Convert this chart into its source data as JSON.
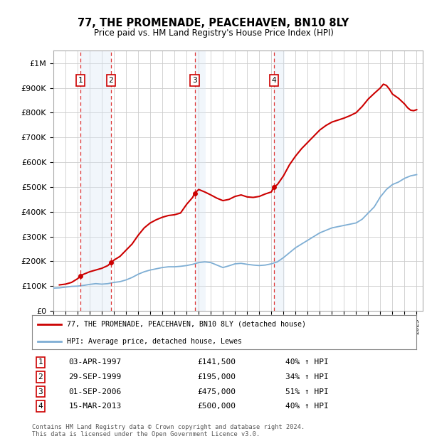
{
  "title": "77, THE PROMENADE, PEACEHAVEN, BN10 8LY",
  "subtitle": "Price paid vs. HM Land Registry's House Price Index (HPI)",
  "legend_line1": "77, THE PROMENADE, PEACEHAVEN, BN10 8LY (detached house)",
  "legend_line2": "HPI: Average price, detached house, Lewes",
  "footer": "Contains HM Land Registry data © Crown copyright and database right 2024.\nThis data is licensed under the Open Government Licence v3.0.",
  "sales": [
    {
      "num": 1,
      "date": "03-APR-1997",
      "x": 1997.25,
      "price": 141500,
      "pct": "40%",
      "dir": "↑"
    },
    {
      "num": 2,
      "date": "29-SEP-1999",
      "x": 1999.75,
      "price": 195000,
      "pct": "34%",
      "dir": "↑"
    },
    {
      "num": 3,
      "date": "01-SEP-2006",
      "x": 2006.67,
      "price": 475000,
      "pct": "51%",
      "dir": "↑"
    },
    {
      "num": 4,
      "date": "15-MAR-2013",
      "x": 2013.21,
      "price": 500000,
      "pct": "40%",
      "dir": "↑"
    }
  ],
  "hpi_color": "#7eaed4",
  "price_color": "#cc0000",
  "marker_color": "#cc0000",
  "shade_color": "#d8e8f5",
  "ylim": [
    0,
    1050000
  ],
  "yticks": [
    0,
    100000,
    200000,
    300000,
    400000,
    500000,
    600000,
    700000,
    800000,
    900000,
    1000000
  ],
  "ytick_labels": [
    "£0",
    "£100K",
    "£200K",
    "£300K",
    "£400K",
    "£500K",
    "£600K",
    "£700K",
    "£800K",
    "£900K",
    "£1M"
  ],
  "xmin": 1995.0,
  "xmax": 2025.5,
  "hpi_data": [
    [
      1995.0,
      92000
    ],
    [
      1995.5,
      93000
    ],
    [
      1996.0,
      96000
    ],
    [
      1996.5,
      99000
    ],
    [
      1997.0,
      100000
    ],
    [
      1997.5,
      103000
    ],
    [
      1998.0,
      107000
    ],
    [
      1998.5,
      110000
    ],
    [
      1999.0,
      108000
    ],
    [
      1999.5,
      110000
    ],
    [
      2000.0,
      115000
    ],
    [
      2000.5,
      118000
    ],
    [
      2001.0,
      125000
    ],
    [
      2001.5,
      135000
    ],
    [
      2002.0,
      148000
    ],
    [
      2002.5,
      158000
    ],
    [
      2003.0,
      165000
    ],
    [
      2003.5,
      170000
    ],
    [
      2004.0,
      175000
    ],
    [
      2004.5,
      178000
    ],
    [
      2005.0,
      178000
    ],
    [
      2005.5,
      180000
    ],
    [
      2006.0,
      183000
    ],
    [
      2006.5,
      188000
    ],
    [
      2007.0,
      195000
    ],
    [
      2007.5,
      198000
    ],
    [
      2008.0,
      195000
    ],
    [
      2008.5,
      185000
    ],
    [
      2009.0,
      175000
    ],
    [
      2009.5,
      182000
    ],
    [
      2010.0,
      190000
    ],
    [
      2010.5,
      192000
    ],
    [
      2011.0,
      188000
    ],
    [
      2011.5,
      185000
    ],
    [
      2012.0,
      183000
    ],
    [
      2012.5,
      185000
    ],
    [
      2013.0,
      190000
    ],
    [
      2013.5,
      198000
    ],
    [
      2014.0,
      215000
    ],
    [
      2014.5,
      235000
    ],
    [
      2015.0,
      255000
    ],
    [
      2015.5,
      270000
    ],
    [
      2016.0,
      285000
    ],
    [
      2016.5,
      300000
    ],
    [
      2017.0,
      315000
    ],
    [
      2017.5,
      325000
    ],
    [
      2018.0,
      335000
    ],
    [
      2018.5,
      340000
    ],
    [
      2019.0,
      345000
    ],
    [
      2019.5,
      350000
    ],
    [
      2020.0,
      355000
    ],
    [
      2020.5,
      370000
    ],
    [
      2021.0,
      395000
    ],
    [
      2021.5,
      420000
    ],
    [
      2022.0,
      460000
    ],
    [
      2022.5,
      490000
    ],
    [
      2023.0,
      510000
    ],
    [
      2023.5,
      520000
    ],
    [
      2024.0,
      535000
    ],
    [
      2024.5,
      545000
    ],
    [
      2025.0,
      550000
    ]
  ],
  "price_data": [
    [
      1995.5,
      105000
    ],
    [
      1996.0,
      108000
    ],
    [
      1996.5,
      115000
    ],
    [
      1997.0,
      130000
    ],
    [
      1997.25,
      141500
    ],
    [
      1997.5,
      148000
    ],
    [
      1998.0,
      158000
    ],
    [
      1998.5,
      165000
    ],
    [
      1999.0,
      172000
    ],
    [
      1999.5,
      183000
    ],
    [
      1999.75,
      195000
    ],
    [
      2000.0,
      205000
    ],
    [
      2000.5,
      220000
    ],
    [
      2001.0,
      245000
    ],
    [
      2001.5,
      270000
    ],
    [
      2002.0,
      305000
    ],
    [
      2002.5,
      335000
    ],
    [
      2003.0,
      355000
    ],
    [
      2003.5,
      368000
    ],
    [
      2004.0,
      378000
    ],
    [
      2004.5,
      385000
    ],
    [
      2005.0,
      388000
    ],
    [
      2005.5,
      395000
    ],
    [
      2006.0,
      430000
    ],
    [
      2006.5,
      458000
    ],
    [
      2006.67,
      475000
    ],
    [
      2007.0,
      490000
    ],
    [
      2007.5,
      480000
    ],
    [
      2008.0,
      468000
    ],
    [
      2008.5,
      455000
    ],
    [
      2009.0,
      445000
    ],
    [
      2009.5,
      450000
    ],
    [
      2010.0,
      462000
    ],
    [
      2010.5,
      468000
    ],
    [
      2011.0,
      460000
    ],
    [
      2011.5,
      458000
    ],
    [
      2012.0,
      462000
    ],
    [
      2012.5,
      472000
    ],
    [
      2013.0,
      480000
    ],
    [
      2013.21,
      500000
    ],
    [
      2013.5,
      510000
    ],
    [
      2014.0,
      545000
    ],
    [
      2014.5,
      590000
    ],
    [
      2015.0,
      625000
    ],
    [
      2015.5,
      655000
    ],
    [
      2016.0,
      680000
    ],
    [
      2016.5,
      705000
    ],
    [
      2017.0,
      730000
    ],
    [
      2017.5,
      748000
    ],
    [
      2018.0,
      762000
    ],
    [
      2018.5,
      770000
    ],
    [
      2019.0,
      778000
    ],
    [
      2019.5,
      788000
    ],
    [
      2020.0,
      800000
    ],
    [
      2020.5,
      825000
    ],
    [
      2021.0,
      855000
    ],
    [
      2021.5,
      878000
    ],
    [
      2022.0,
      900000
    ],
    [
      2022.25,
      915000
    ],
    [
      2022.5,
      910000
    ],
    [
      2022.75,
      895000
    ],
    [
      2023.0,
      875000
    ],
    [
      2023.5,
      858000
    ],
    [
      2024.0,
      835000
    ],
    [
      2024.25,
      820000
    ],
    [
      2024.5,
      810000
    ],
    [
      2024.75,
      808000
    ],
    [
      2025.0,
      812000
    ]
  ]
}
